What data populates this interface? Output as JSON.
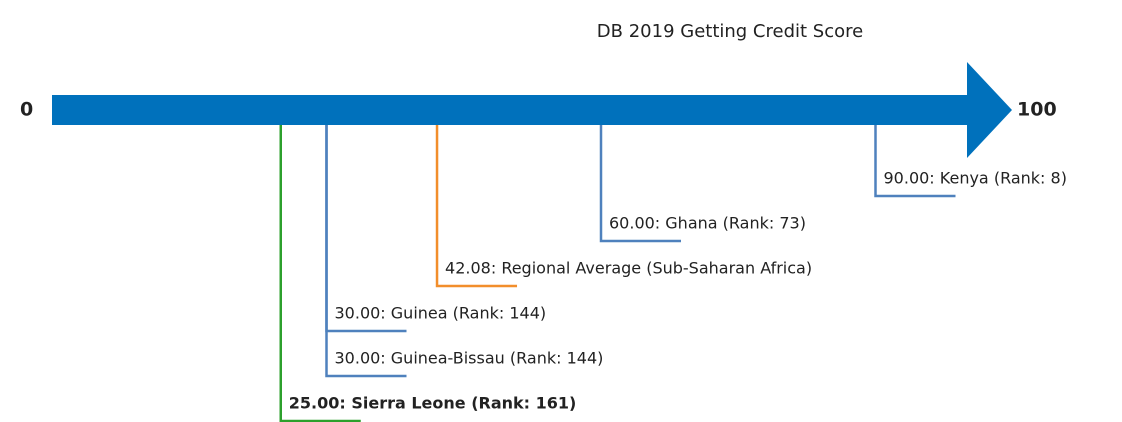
{
  "chart_data": {
    "type": "scale",
    "title": "DB 2019 Getting Credit Score",
    "xlim": [
      0,
      100
    ],
    "xticks": [
      0,
      100
    ],
    "bar_color": "#0071bc",
    "values": [
      90,
      60,
      42.08,
      30,
      30,
      25
    ],
    "value_labels": [
      "90.00: Kenya (Rank: 8)",
      "60.00: Ghana (Rank: 73)",
      "42.08: Regional Average (Sub-Saharan Africa)",
      "30.00: Guinea (Rank: 144)",
      "30.00: Guinea-Bissau (Rank: 144)",
      "25.00: Sierra Leone (Rank: 161)"
    ],
    "colors": [
      "#4f81bd",
      "#4f81bd",
      "#f28e2b",
      "#4f81bd",
      "#4f81bd",
      "#2ca02c"
    ],
    "bold": [
      false,
      false,
      false,
      false,
      false,
      true
    ]
  }
}
